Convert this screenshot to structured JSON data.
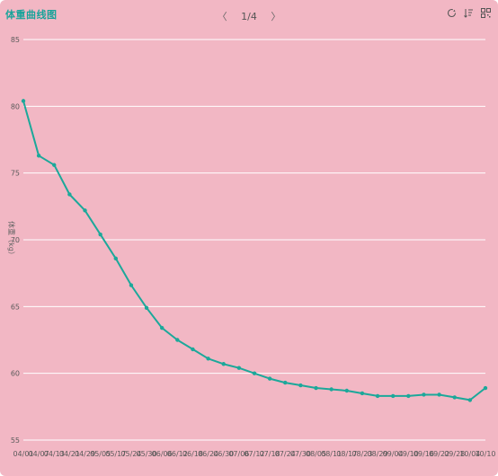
{
  "header": {
    "title": "体重曲线图",
    "page_prev": "〈",
    "page_text": "1/4",
    "page_next": "〉"
  },
  "toolbar": {
    "icons": [
      "refresh-icon",
      "sort-icon",
      "qrcode-icon"
    ]
  },
  "colors": {
    "background": "#f2b7c4",
    "line": "#1ca89a",
    "grid": "#ffffff",
    "title": "#18a39a"
  },
  "chart_data": {
    "type": "line",
    "title": "体重曲线图",
    "ylabel": "体重（kg）",
    "xlabel": "",
    "ylim": [
      55,
      85
    ],
    "yticks": [
      55,
      60,
      65,
      70,
      75,
      80,
      85
    ],
    "grid": true,
    "categories": [
      "04/01",
      "04/07",
      "04/13",
      "04/21",
      "04/29",
      "05/05",
      "05/17",
      "05/24",
      "05/30",
      "06/06",
      "06/12",
      "06/18",
      "06/24",
      "06/30",
      "07/06",
      "07/12",
      "07/18",
      "07/24",
      "07/30",
      "08/05",
      "08/11",
      "08/17",
      "08/23",
      "08/29",
      "09/04",
      "09/10",
      "09/16",
      "09/22",
      "09/28",
      "10/04",
      "10/10"
    ],
    "series": [
      {
        "values": [
          80.4,
          76.3,
          75.6,
          73.4,
          72.2,
          70.4,
          68.6,
          66.6,
          64.9,
          63.4,
          62.5,
          61.8,
          61.1,
          60.7,
          60.4,
          60.0,
          59.6,
          59.3,
          59.1,
          58.9,
          58.8,
          58.7,
          58.5,
          58.3,
          58.3,
          58.3,
          58.4,
          58.4,
          58.2,
          58.0,
          58.9
        ]
      }
    ]
  }
}
